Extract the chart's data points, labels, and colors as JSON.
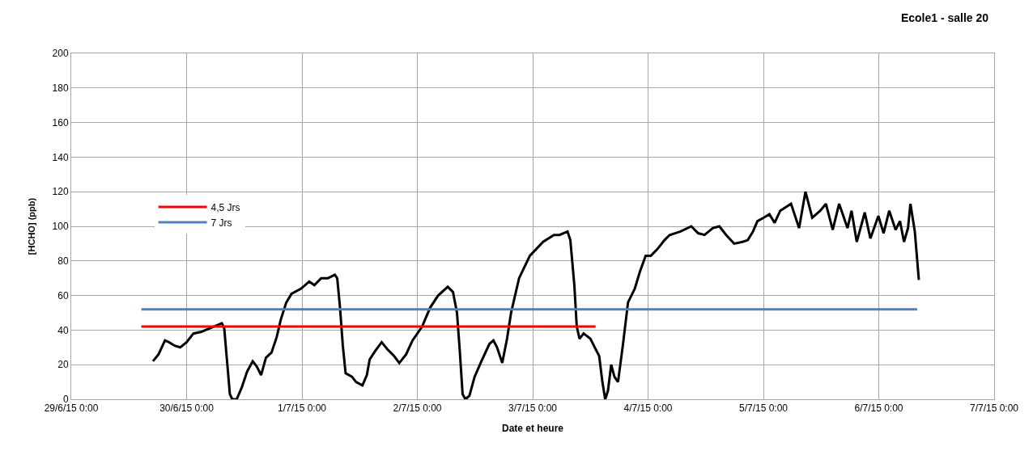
{
  "chart_data": {
    "type": "line",
    "title": "Ecole1 - salle 20",
    "xlabel": "Date et heure",
    "ylabel": "[HCHO] (ppb)",
    "xlim": [
      "--06-29T00:00",
      "--07-07T00:00"
    ],
    "xticks": [
      {
        "value": "--06-29T00:00",
        "label": "29/6/15 0:00"
      },
      {
        "value": "--06-30T00:00",
        "label": "30/6/15 0:00"
      },
      {
        "value": "--07-01T00:00",
        "label": "1/7/15 0:00"
      },
      {
        "value": "--07-02T00:00",
        "label": "2/7/15 0:00"
      },
      {
        "value": "--07-03T00:00",
        "label": "3/7/15 0:00"
      },
      {
        "value": "--07-04T00:00",
        "label": "4/7/15 0:00"
      },
      {
        "value": "--07-05T00:00",
        "label": "5/7/15 0:00"
      },
      {
        "value": "--07-06T00:00",
        "label": "6/7/15 0:00"
      },
      {
        "value": "--07-07T00:00",
        "label": "7/7/15 0:00"
      }
    ],
    "ylim": [
      0,
      200
    ],
    "yticks": [
      0,
      20,
      40,
      60,
      80,
      100,
      120,
      140,
      160,
      180,
      200
    ],
    "grid": true,
    "legend": "left",
    "line_style": "solid",
    "series": [
      {
        "color": "#000000",
        "x": [
          "--06-29T17:00",
          "--06-29T18:10",
          "--06-29T19:30",
          "--06-29T20:20",
          "--06-29T21:30",
          "--06-29T22:40",
          "--06-30T00:00",
          "--06-30T01:25",
          "--06-30T03:05",
          "--06-30T04:45",
          "--06-30T07:20",
          "--06-30T07:50",
          "--06-30T08:25",
          "--06-30T09:00",
          "--06-30T09:30",
          "--06-30T10:25",
          "--06-30T11:30",
          "--06-30T12:35",
          "--06-30T13:45",
          "--06-30T14:35",
          "--06-30T15:30",
          "--06-30T16:30",
          "--06-30T17:40",
          "--06-30T18:45",
          "--06-30T19:35",
          "--06-30T20:45",
          "--06-30T21:50",
          "--06-30T23:50",
          "--07-01T01:30",
          "--07-01T02:35",
          "--07-01T04:00",
          "--07-01T05:25",
          "--07-01T06:50",
          "--07-01T07:20",
          "--07-01T07:55",
          "--07-01T08:30",
          "--07-01T09:05",
          "--07-01T10:25",
          "--07-01T11:15",
          "--07-01T12:35",
          "--07-01T13:30",
          "--07-01T14:05",
          "--07-01T15:15",
          "--07-01T16:35",
          "--07-01T17:45",
          "--07-01T19:10",
          "--07-01T20:15",
          "--07-01T21:40",
          "--07-01T23:00",
          "--07-02T01:00",
          "--07-02T02:40",
          "--07-02T04:20",
          "--07-02T06:20",
          "--07-02T07:25",
          "--07-02T08:15",
          "--07-02T08:50",
          "--07-02T09:25",
          "--07-02T10:00",
          "--07-02T10:50",
          "--07-02T11:55",
          "--07-02T13:20",
          "--07-02T15:00",
          "--07-02T15:50",
          "--07-02T16:35",
          "--07-02T17:40",
          "--07-02T18:40",
          "--07-02T19:30",
          "--07-02T21:10",
          "--07-02T23:25",
          "--07-03T02:10",
          "--07-03T04:25",
          "--07-03T05:35",
          "--07-03T07:15",
          "--07-03T07:50",
          "--07-03T08:40",
          "--07-03T09:10",
          "--07-03T09:45",
          "--07-03T10:35",
          "--07-03T12:00",
          "--07-03T13:05",
          "--07-03T13:50",
          "--07-03T14:30",
          "--07-03T15:05",
          "--07-03T15:40",
          "--07-03T16:20",
          "--07-03T17:00",
          "--07-03T17:45",
          "--07-03T18:45",
          "--07-03T19:50",
          "--07-03T21:15",
          "--07-03T22:20",
          "--07-03T23:30",
          "--07-04T00:35",
          "--07-04T02:00",
          "--07-04T03:25",
          "--07-04T04:30",
          "--07-04T06:45",
          "--07-04T09:00",
          "--07-04T10:25",
          "--07-04T11:45",
          "--07-04T13:30",
          "--07-04T14:50",
          "--07-04T16:15",
          "--07-04T17:55",
          "--07-04T19:40",
          "--07-04T20:45",
          "--07-04T21:50",
          "--07-04T22:45",
          "--07-05T00:05",
          "--07-05T01:15",
          "--07-05T02:20",
          "--07-05T03:30",
          "--07-05T05:45",
          "--07-05T07:25",
          "--07-05T08:45",
          "--07-05T10:10",
          "--07-05T11:50",
          "--07-05T13:00",
          "--07-05T14:25",
          "--07-05T15:45",
          "--07-05T17:30",
          "--07-05T18:20",
          "--07-05T19:25",
          "--07-05T21:05",
          "--07-05T22:15",
          "--07-05T23:55",
          "--07-06T01:00",
          "--07-06T02:10",
          "--07-06T03:30",
          "--07-06T04:25",
          "--07-06T05:15",
          "--07-06T06:05",
          "--07-06T06:35",
          "--07-06T07:30",
          "--07-06T08:20"
        ],
        "values": [
          22,
          26,
          34,
          33,
          31,
          30,
          33,
          38,
          39,
          41,
          44,
          41,
          22,
          3,
          0,
          0,
          7,
          16,
          22,
          19,
          14,
          24,
          27,
          36,
          46,
          56,
          61,
          64,
          68,
          66,
          70,
          70,
          72,
          70,
          53,
          31,
          15,
          13,
          10,
          8,
          14,
          23,
          28,
          33,
          29,
          25,
          21,
          26,
          34,
          42,
          53,
          60,
          65,
          62,
          50,
          28,
          3,
          0,
          2,
          13,
          22,
          32,
          34,
          30,
          21,
          35,
          50,
          70,
          83,
          91,
          95,
          95,
          97,
          92,
          66,
          42,
          35,
          38,
          35,
          29,
          25,
          10,
          0,
          5,
          20,
          13,
          10,
          31,
          56,
          64,
          74,
          83,
          83,
          87,
          92,
          95,
          97,
          100,
          96,
          95,
          99,
          100,
          95,
          90,
          91,
          92,
          97,
          103,
          105,
          107,
          102,
          109,
          113,
          99,
          120,
          105,
          109,
          113,
          98,
          113,
          99,
          109,
          91,
          108,
          93,
          106,
          96,
          109,
          98,
          103,
          91,
          99,
          113,
          97,
          69
        ]
      },
      {
        "name": "4,5 Jrs",
        "color": "#ff0000",
        "x": [
          "--06-29T14:35",
          "--07-03T13:05"
        ],
        "values": [
          42,
          42
        ]
      },
      {
        "name": "7 Jrs",
        "color": "#4f81bd",
        "x": [
          "--06-29T14:35",
          "--07-06T08:00"
        ],
        "values": [
          52,
          52
        ]
      }
    ]
  }
}
